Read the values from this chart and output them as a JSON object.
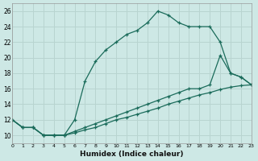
{
  "xlabel": "Humidex (Indice chaleur)",
  "bg_color": "#cde8e5",
  "grid_color": "#b8d4d0",
  "line_color": "#1a6b5a",
  "x_min": 0,
  "x_max": 23,
  "y_min": 9,
  "y_max": 27,
  "yticks": [
    10,
    12,
    14,
    16,
    18,
    20,
    22,
    24,
    26
  ],
  "xticks": [
    0,
    1,
    2,
    3,
    4,
    5,
    6,
    7,
    8,
    9,
    10,
    11,
    12,
    13,
    14,
    15,
    16,
    17,
    18,
    19,
    20,
    21,
    22,
    23
  ],
  "line1_x": [
    0,
    1,
    2,
    3,
    4,
    5,
    6,
    7,
    8,
    9,
    10,
    11,
    12,
    13,
    14,
    15,
    16,
    17,
    18,
    19,
    20,
    21,
    22,
    23
  ],
  "line1_y": [
    12,
    11,
    11,
    10,
    10,
    10,
    12,
    17,
    19.5,
    21,
    22,
    23,
    23.5,
    24.5,
    26,
    25.5,
    24.5,
    24,
    24,
    24,
    22,
    18,
    17.5,
    16.5
  ],
  "line2_x": [
    0,
    1,
    2,
    3,
    4,
    5,
    6,
    7,
    8,
    9,
    10,
    11,
    12,
    13,
    14,
    15,
    16,
    17,
    18,
    19,
    20,
    21,
    22,
    23
  ],
  "line2_y": [
    12,
    11,
    11,
    10,
    10,
    10,
    10.5,
    11,
    11.5,
    12,
    12.5,
    13,
    13.5,
    14,
    14.5,
    15,
    15.5,
    16,
    16,
    16.5,
    20.3,
    18,
    17.5,
    16.5
  ],
  "line3_x": [
    0,
    1,
    2,
    3,
    4,
    5,
    6,
    7,
    8,
    9,
    10,
    11,
    12,
    13,
    14,
    15,
    16,
    17,
    18,
    19,
    20,
    21,
    22,
    23
  ],
  "line3_y": [
    12,
    11,
    11,
    10,
    10,
    10,
    10.3,
    10.7,
    11.0,
    11.5,
    12.0,
    12.3,
    12.7,
    13.1,
    13.5,
    14.0,
    14.4,
    14.8,
    15.2,
    15.5,
    15.9,
    16.2,
    16.4,
    16.5
  ]
}
